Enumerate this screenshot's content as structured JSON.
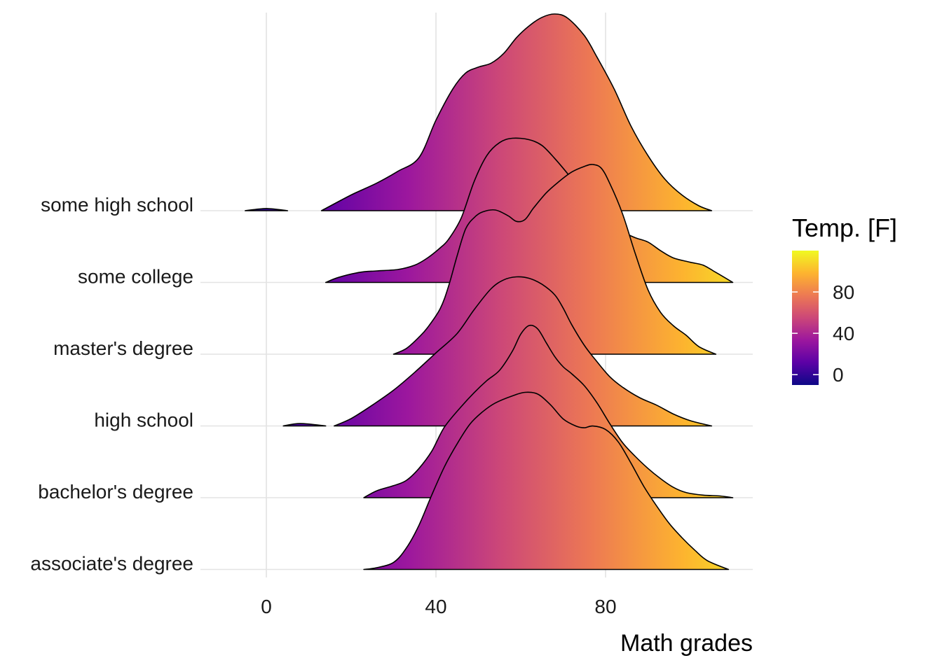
{
  "chart_data": {
    "type": "ridgeline",
    "xlabel": "Math grades",
    "ylabel": "",
    "xlim": [
      -17,
      115
    ],
    "x_ticks": [
      0,
      40,
      80
    ],
    "grid": true,
    "fill_palette": "plasma",
    "palette_stops": [
      "#0d0887",
      "#5c01a6",
      "#9c179e",
      "#cc4778",
      "#ed7953",
      "#fdb42f",
      "#f0f921"
    ],
    "legend": {
      "title": "Temp. [F]",
      "placement": "right",
      "range": [
        -10,
        120
      ],
      "ticks": [
        0,
        40,
        80
      ]
    },
    "categories": [
      "some high school",
      "some college",
      "master's degree",
      "high school",
      "bachelor's degree",
      "associate's degree"
    ],
    "series": [
      {
        "label": "some high school",
        "x_range": [
          -5,
          105
        ],
        "gaps": [
          [
            5,
            13
          ]
        ],
        "density": [
          [
            -5,
            0
          ],
          [
            0,
            0.011
          ],
          [
            5,
            0
          ],
          [
            13,
            0
          ],
          [
            20,
            0.08
          ],
          [
            26,
            0.14
          ],
          [
            31,
            0.2
          ],
          [
            36,
            0.27
          ],
          [
            40,
            0.46
          ],
          [
            44,
            0.62
          ],
          [
            47,
            0.7
          ],
          [
            50,
            0.73
          ],
          [
            53,
            0.75
          ],
          [
            56,
            0.8
          ],
          [
            59,
            0.88
          ],
          [
            62,
            0.94
          ],
          [
            65,
            0.983
          ],
          [
            68,
            1.0
          ],
          [
            71,
            0.98
          ],
          [
            75,
            0.89
          ],
          [
            78,
            0.78
          ],
          [
            82,
            0.62
          ],
          [
            86,
            0.43
          ],
          [
            90,
            0.28
          ],
          [
            94,
            0.16
          ],
          [
            98,
            0.08
          ],
          [
            102,
            0.025
          ],
          [
            105,
            0.0
          ]
        ]
      },
      {
        "label": "some college",
        "x_range": [
          14,
          110
        ],
        "density": [
          [
            14,
            0
          ],
          [
            17,
            0.035
          ],
          [
            22,
            0.07
          ],
          [
            26,
            0.08
          ],
          [
            31,
            0.09
          ],
          [
            35,
            0.12
          ],
          [
            38,
            0.17
          ],
          [
            41,
            0.24
          ],
          [
            43,
            0.3
          ],
          [
            46,
            0.45
          ],
          [
            49,
            0.7
          ],
          [
            52,
            0.88
          ],
          [
            55,
            0.97
          ],
          [
            58,
            1.0
          ],
          [
            62,
            0.99
          ],
          [
            65,
            0.95
          ],
          [
            68,
            0.86
          ],
          [
            72,
            0.72
          ],
          [
            75,
            0.6
          ],
          [
            78,
            0.48
          ],
          [
            81,
            0.4
          ],
          [
            84,
            0.35
          ],
          [
            87,
            0.31
          ],
          [
            90,
            0.28
          ],
          [
            93,
            0.22
          ],
          [
            96,
            0.17
          ],
          [
            100,
            0.14
          ],
          [
            103,
            0.12
          ],
          [
            106,
            0.07
          ],
          [
            110,
            0.0
          ]
        ]
      },
      {
        "label": "master's degree",
        "x_range": [
          30,
          106
        ],
        "density": [
          [
            30,
            0
          ],
          [
            33,
            0.03
          ],
          [
            36,
            0.09
          ],
          [
            38,
            0.14
          ],
          [
            41,
            0.24
          ],
          [
            43,
            0.36
          ],
          [
            45,
            0.52
          ],
          [
            47,
            0.66
          ],
          [
            49,
            0.72
          ],
          [
            51,
            0.75
          ],
          [
            54,
            0.76
          ],
          [
            57,
            0.73
          ],
          [
            59,
            0.7
          ],
          [
            61,
            0.71
          ],
          [
            63,
            0.77
          ],
          [
            66,
            0.85
          ],
          [
            69,
            0.91
          ],
          [
            72,
            0.96
          ],
          [
            75,
            0.99
          ],
          [
            77,
            1.0
          ],
          [
            79,
            0.98
          ],
          [
            81,
            0.9
          ],
          [
            84,
            0.74
          ],
          [
            87,
            0.53
          ],
          [
            90,
            0.34
          ],
          [
            93,
            0.22
          ],
          [
            96,
            0.15
          ],
          [
            99,
            0.1
          ],
          [
            102,
            0.04
          ],
          [
            106,
            0.0
          ]
        ]
      },
      {
        "label": "high school",
        "x_range": [
          4,
          105
        ],
        "gaps": [
          [
            14,
            16
          ]
        ],
        "density": [
          [
            4,
            0
          ],
          [
            8,
            0.016
          ],
          [
            14,
            0
          ],
          [
            16,
            0
          ],
          [
            20,
            0.05
          ],
          [
            25,
            0.14
          ],
          [
            30,
            0.24
          ],
          [
            35,
            0.36
          ],
          [
            40,
            0.49
          ],
          [
            45,
            0.62
          ],
          [
            49,
            0.78
          ],
          [
            53,
            0.92
          ],
          [
            56,
            0.98
          ],
          [
            59,
            1.0
          ],
          [
            62,
            0.99
          ],
          [
            65,
            0.95
          ],
          [
            68,
            0.88
          ],
          [
            70,
            0.79
          ],
          [
            72,
            0.68
          ],
          [
            75,
            0.54
          ],
          [
            78,
            0.43
          ],
          [
            81,
            0.33
          ],
          [
            84,
            0.26
          ],
          [
            88,
            0.19
          ],
          [
            92,
            0.14
          ],
          [
            96,
            0.08
          ],
          [
            100,
            0.035
          ],
          [
            105,
            0.0
          ]
        ]
      },
      {
        "label": "bachelor's degree",
        "x_range": [
          23,
          110
        ],
        "density": [
          [
            23,
            0
          ],
          [
            26,
            0.04
          ],
          [
            30,
            0.07
          ],
          [
            33,
            0.1
          ],
          [
            36,
            0.17
          ],
          [
            39,
            0.27
          ],
          [
            42,
            0.41
          ],
          [
            46,
            0.53
          ],
          [
            49,
            0.61
          ],
          [
            52,
            0.68
          ],
          [
            55,
            0.74
          ],
          [
            58,
            0.85
          ],
          [
            60,
            0.95
          ],
          [
            62,
            1.0
          ],
          [
            64,
            0.98
          ],
          [
            66,
            0.9
          ],
          [
            68,
            0.82
          ],
          [
            70,
            0.76
          ],
          [
            72,
            0.72
          ],
          [
            75,
            0.65
          ],
          [
            78,
            0.55
          ],
          [
            81,
            0.43
          ],
          [
            84,
            0.32
          ],
          [
            87,
            0.24
          ],
          [
            90,
            0.17
          ],
          [
            93,
            0.11
          ],
          [
            96,
            0.06
          ],
          [
            99,
            0.03
          ],
          [
            103,
            0.015
          ],
          [
            107,
            0.01
          ],
          [
            110,
            0.0
          ]
        ]
      },
      {
        "label": "associate's degree",
        "x_range": [
          23,
          109
        ],
        "density": [
          [
            23,
            0
          ],
          [
            26,
            0.01
          ],
          [
            30,
            0.04
          ],
          [
            33,
            0.12
          ],
          [
            36,
            0.25
          ],
          [
            39,
            0.42
          ],
          [
            42,
            0.58
          ],
          [
            45,
            0.71
          ],
          [
            48,
            0.82
          ],
          [
            51,
            0.89
          ],
          [
            54,
            0.94
          ],
          [
            58,
            0.98
          ],
          [
            61,
            1.0
          ],
          [
            64,
            0.99
          ],
          [
            67,
            0.93
          ],
          [
            70,
            0.85
          ],
          [
            73,
            0.81
          ],
          [
            75,
            0.8
          ],
          [
            77,
            0.81
          ],
          [
            80,
            0.79
          ],
          [
            83,
            0.72
          ],
          [
            86,
            0.6
          ],
          [
            89,
            0.47
          ],
          [
            92,
            0.36
          ],
          [
            95,
            0.26
          ],
          [
            98,
            0.18
          ],
          [
            101,
            0.11
          ],
          [
            104,
            0.05
          ],
          [
            109,
            0.0
          ]
        ]
      }
    ]
  }
}
